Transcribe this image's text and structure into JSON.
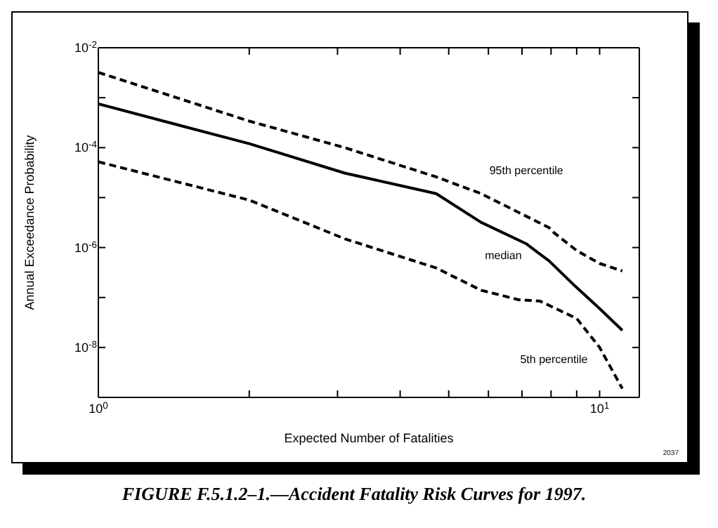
{
  "chart_data": {
    "type": "line",
    "title": "FIGURE F.5.1.2–1.—Accident Fatality Risk Curves for 1997.",
    "xlabel": "Expected Number of Fatalities",
    "ylabel": "Annual Exceedance Probability",
    "log": "xy",
    "xlim": [
      1,
      12
    ],
    "xticks": [
      {
        "value": 1,
        "label": "10$^{0}$"
      },
      {
        "value": 2,
        "label": null
      },
      {
        "value": 3,
        "label": null
      },
      {
        "value": 4,
        "label": null
      },
      {
        "value": 5,
        "label": null
      },
      {
        "value": 6,
        "label": null
      },
      {
        "value": 7,
        "label": null
      },
      {
        "value": 8,
        "label": null
      },
      {
        "value": 9,
        "label": null
      },
      {
        "value": 10,
        "label": "10$^{1}$"
      }
    ],
    "ylim": [
      1e-09,
      0.01
    ],
    "yticks": [
      {
        "value": 0.01,
        "label": "10$^{-2}$"
      },
      {
        "value": 0.001,
        "label": null
      },
      {
        "value": 0.0001,
        "label": "10$^{-4}$"
      },
      {
        "value": 1e-05,
        "label": null
      },
      {
        "value": 1e-06,
        "label": "10$^{-6}$"
      },
      {
        "value": 1e-07,
        "label": null
      },
      {
        "value": 1e-08,
        "label": "10$^{-8}$"
      }
    ],
    "marker": "none",
    "series": [
      {
        "name": "95th percentile",
        "color": "#000000",
        "line_style": "dashed",
        "x": [
          1,
          2,
          3.1,
          4.72,
          5.8,
          7.93,
          8.1,
          9.0,
          10,
          11.1
        ],
        "values": [
          0.0032,
          0.00034,
          0.0001,
          2.6e-05,
          1.2e-05,
          2.5e-06,
          2e-06,
          8.7e-07,
          4.8e-07,
          3.4e-07
        ]
      },
      {
        "name": "median",
        "color": "#000000",
        "line_style": "solid",
        "x": [
          1,
          2,
          3.1,
          4.72,
          5.8,
          7.13,
          7.93,
          8.93,
          10,
          11.1
        ],
        "values": [
          0.00075,
          0.00012,
          3.1e-05,
          1.2e-05,
          3.2e-06,
          1.2e-06,
          5.4e-07,
          1.7e-07,
          6e-08,
          2.2e-08
        ]
      },
      {
        "name": "5th percentile",
        "color": "#000000",
        "line_style": "dashed",
        "x": [
          1,
          2,
          3.1,
          4.72,
          5.8,
          6.9,
          7.6,
          9.0,
          10,
          11.1
        ],
        "values": [
          5.2e-05,
          8.9e-06,
          1.5e-06,
          3.9e-07,
          1.4e-07,
          9e-08,
          8.5e-08,
          3.8e-08,
          1e-08,
          1.5e-09
        ]
      }
    ],
    "annotations": [
      "2037"
    ]
  }
}
